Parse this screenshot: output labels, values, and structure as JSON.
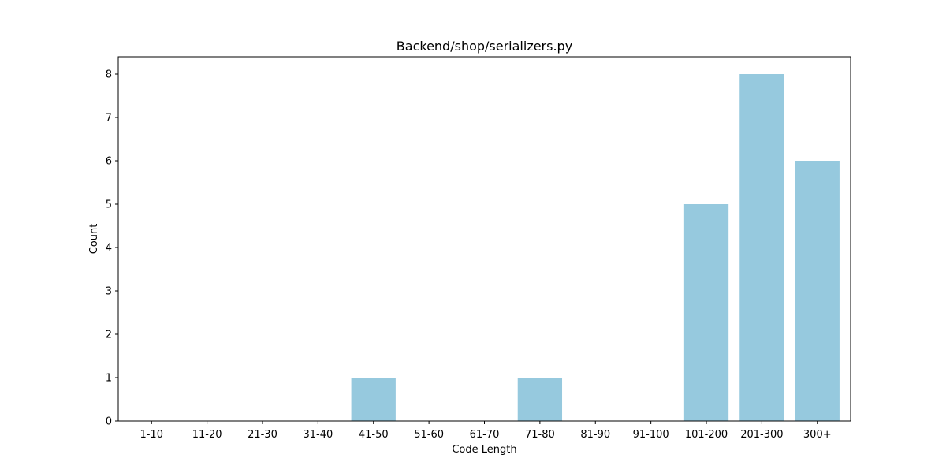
{
  "chart_data": {
    "type": "bar",
    "title": "Backend/shop/serializers.py",
    "xlabel": "Code Length",
    "ylabel": "Count",
    "categories": [
      "1-10",
      "11-20",
      "21-30",
      "31-40",
      "41-50",
      "51-60",
      "61-70",
      "71-80",
      "81-90",
      "91-100",
      "101-200",
      "201-300",
      "300+"
    ],
    "values": [
      0,
      0,
      0,
      0,
      1,
      0,
      0,
      1,
      0,
      0,
      5,
      8,
      6
    ],
    "ylim": [
      0,
      8.4
    ],
    "yticks": [
      0,
      1,
      2,
      3,
      4,
      5,
      6,
      7,
      8
    ],
    "grid": false,
    "legend": "none",
    "bar_color": "#96c9de"
  }
}
